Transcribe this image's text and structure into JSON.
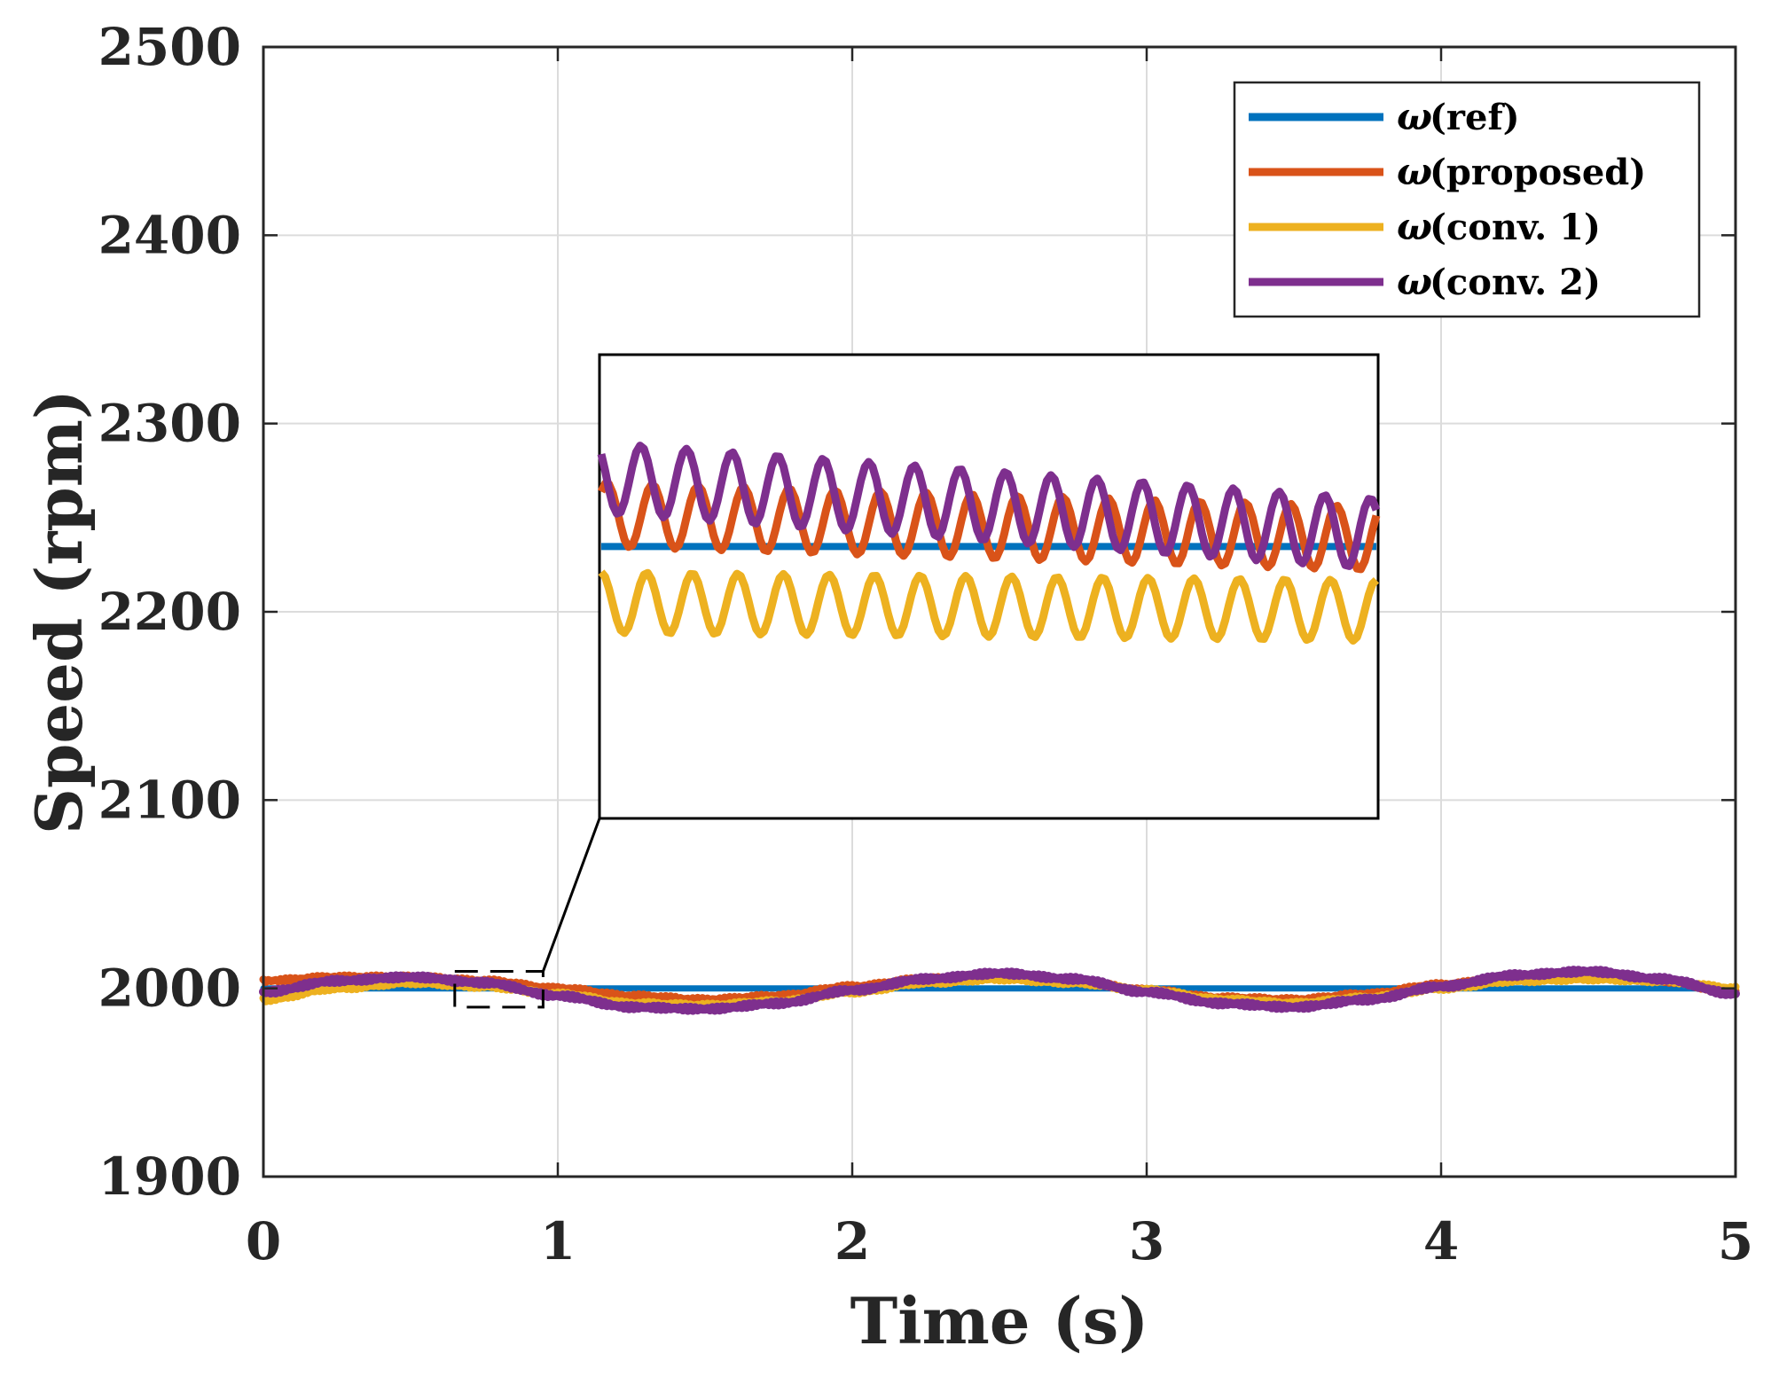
{
  "chart_data": {
    "type": "line",
    "title": "",
    "xlabel": "Time (s)",
    "ylabel": "Speed (rpm)",
    "xlim": [
      0,
      5
    ],
    "ylim": [
      1900,
      2500
    ],
    "xticks": [
      0,
      1,
      2,
      3,
      4,
      5
    ],
    "yticks": [
      1900,
      2000,
      2100,
      2200,
      2300,
      2400,
      2500
    ],
    "grid": true,
    "legend_position": "top-right",
    "colors": {
      "ref": "#0072BD",
      "proposed": "#D95319",
      "conv1": "#EDB120",
      "conv2": "#7E2F8E",
      "grid": "#dcdcdc",
      "axis": "#262626"
    },
    "series": [
      {
        "name": "ω (ref)",
        "legend_symbol": "ω",
        "legend_label": "(ref)",
        "color": "#0072BD",
        "x": [
          0,
          0.5,
          0.75,
          0.9,
          1.0,
          1.5,
          2.0,
          2.5,
          3.0,
          3.5,
          4.0,
          4.5,
          5.0
        ],
        "values": [
          2000,
          2000,
          2000,
          2000,
          2000,
          2000,
          2000,
          2000,
          2000,
          2000,
          2000,
          2000,
          2000
        ]
      },
      {
        "name": "ω (proposed)",
        "legend_symbol": "ω",
        "legend_label": "(proposed)",
        "color": "#D95319",
        "x": [
          0,
          0.25,
          0.5,
          0.75,
          1.0,
          1.25,
          1.5,
          1.75,
          2.0,
          2.25,
          2.5,
          2.75,
          3.0,
          3.25,
          3.5,
          3.75,
          4.0,
          4.25,
          4.5,
          4.75,
          5.0
        ],
        "values": [
          2004,
          2006,
          2006,
          2004,
          2000,
          1996,
          1994,
          1996,
          2001,
          2005,
          2007,
          2004,
          1999,
          1995,
          1994,
          1997,
          2002,
          2006,
          2007,
          2004,
          1998
        ]
      },
      {
        "name": "ω (conv. 1)",
        "legend_symbol": "ω",
        "legend_label": "(conv. 1)",
        "color": "#EDB120",
        "x": [
          0,
          0.25,
          0.5,
          0.75,
          1.0,
          1.25,
          1.5,
          1.75,
          2.0,
          2.25,
          2.5,
          2.75,
          3.0,
          3.25,
          3.5,
          3.75,
          4.0,
          4.25,
          4.5,
          4.75,
          5.0
        ],
        "values": [
          1994,
          2000,
          2003,
          2001,
          1997,
          1992,
          1991,
          1993,
          1998,
          2003,
          2005,
          2003,
          1999,
          1994,
          1992,
          1995,
          2000,
          2004,
          2005,
          2004,
          2000
        ]
      },
      {
        "name": "ω (conv. 2)",
        "legend_symbol": "ω",
        "legend_label": "(conv. 2)",
        "color": "#7E2F8E",
        "x": [
          0,
          0.25,
          0.5,
          0.75,
          1.0,
          1.25,
          1.5,
          1.75,
          2.0,
          2.25,
          2.5,
          2.75,
          3.0,
          3.25,
          3.5,
          3.75,
          4.0,
          4.25,
          4.5,
          4.75,
          5.0
        ],
        "values": [
          1998,
          2004,
          2006,
          2003,
          1996,
          1990,
          1989,
          1992,
          1999,
          2005,
          2008,
          2005,
          1998,
          1992,
          1990,
          1994,
          2001,
          2007,
          2009,
          2005,
          1997
        ]
      }
    ],
    "zoom_region": {
      "x_range": [
        0.65,
        0.95
      ],
      "y_range": [
        1990,
        2009
      ],
      "inset_samples": 200,
      "inset_series": [
        {
          "name": "ω (ref)",
          "color": "#0072BD",
          "offset": 0,
          "amplitude": 0,
          "drift": 0,
          "cycles": 0
        },
        {
          "name": "ω (proposed)",
          "color": "#D95319",
          "offset": 2.0,
          "amplitude": 2.0,
          "drift": -1.5,
          "cycles": 17
        },
        {
          "name": "ω (conv. 1)",
          "color": "#EDB120",
          "offset": -3.5,
          "amplitude": 1.9,
          "drift": -0.5,
          "cycles": 17
        },
        {
          "name": "ω (conv. 2)",
          "color": "#7E2F8E",
          "offset": 4.3,
          "amplitude": 2.2,
          "drift": -3.5,
          "cycles": 17
        }
      ],
      "inset_ylim": [
        1983,
        2012
      ]
    }
  }
}
